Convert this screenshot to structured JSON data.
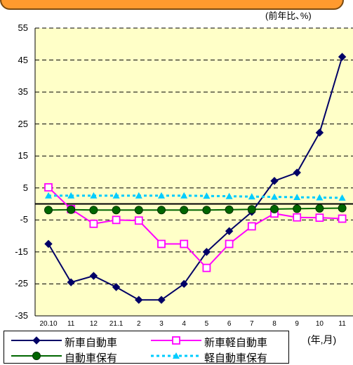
{
  "chart_data": {
    "type": "line",
    "unit_label": "(前年比､%)",
    "axis_unit": "(年,月)",
    "categories": [
      "20.10",
      "11",
      "12",
      "21.1",
      "2",
      "3",
      "4",
      "5",
      "6",
      "7",
      "8",
      "9",
      "10",
      "11"
    ],
    "y_ticks": [
      "55",
      "45",
      "35",
      "25",
      "15",
      "5",
      "-5",
      "-15",
      "-25",
      "-35"
    ],
    "ylim": [
      -35,
      55
    ],
    "series": [
      {
        "name": "新車自動車",
        "color": "#000066",
        "marker": "diamond-filled",
        "dash": false,
        "values": [
          -12.5,
          -24.5,
          -22.5,
          -26,
          -30,
          -30,
          -25,
          -15,
          -8.5,
          -2.5,
          7.2,
          9.8,
          22.3,
          46
        ]
      },
      {
        "name": "新車軽自動車",
        "color": "#ff00ff",
        "marker": "square-open",
        "dash": false,
        "values": [
          5.2,
          -1.6,
          -6.2,
          -5,
          -5.2,
          -12.5,
          -12.5,
          -20,
          -12.5,
          -7,
          -3,
          -4.2,
          -4.3,
          -4.6
        ]
      },
      {
        "name": "自動車保有",
        "color": "#006600",
        "marker": "circle-filled",
        "dash": false,
        "values": [
          -1.9,
          -1.8,
          -1.9,
          -1.9,
          -1.9,
          -1.9,
          -1.9,
          -1.9,
          -1.8,
          -1.7,
          -1.6,
          -1.5,
          -1.4,
          -1.3
        ]
      },
      {
        "name": "軽自動車保有",
        "color": "#00ccff",
        "marker": "triangle-filled",
        "dash": true,
        "values": [
          2.6,
          2.6,
          2.6,
          2.6,
          2.6,
          2.6,
          2.6,
          2.5,
          2.4,
          2.3,
          2.2,
          2.1,
          2.0,
          1.9
        ]
      }
    ],
    "grid": true,
    "legend_position": "bottom"
  }
}
